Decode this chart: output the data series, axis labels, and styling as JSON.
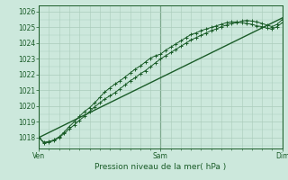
{
  "xlabel": "Pression niveau de la mer( hPa )",
  "background_color": "#cce8dc",
  "grid_color": "#aaccbb",
  "line_color": "#1a5c28",
  "ylim": [
    1017.3,
    1026.4
  ],
  "xlim": [
    0,
    48
  ],
  "x_ticks": [
    0,
    24,
    48
  ],
  "x_tick_labels": [
    "Ven",
    "Sam",
    "Dim"
  ],
  "y_ticks": [
    1018,
    1019,
    1020,
    1021,
    1022,
    1023,
    1024,
    1025,
    1026
  ],
  "line1_x": [
    0,
    1,
    2,
    3,
    4,
    5,
    6,
    7,
    8,
    9,
    10,
    11,
    12,
    13,
    14,
    15,
    16,
    17,
    18,
    19,
    20,
    21,
    22,
    23,
    24,
    25,
    26,
    27,
    28,
    29,
    30,
    31,
    32,
    33,
    34,
    35,
    36,
    37,
    38,
    39,
    40,
    41,
    42,
    43,
    44,
    45,
    46,
    47,
    48
  ],
  "line1_y": [
    1018.0,
    1017.65,
    1017.7,
    1017.8,
    1018.0,
    1018.25,
    1018.55,
    1018.8,
    1019.1,
    1019.35,
    1019.65,
    1019.95,
    1020.2,
    1020.45,
    1020.65,
    1020.85,
    1021.1,
    1021.35,
    1021.6,
    1021.8,
    1022.05,
    1022.25,
    1022.5,
    1022.75,
    1023.0,
    1023.2,
    1023.4,
    1023.6,
    1023.8,
    1024.0,
    1024.2,
    1024.35,
    1024.5,
    1024.65,
    1024.8,
    1024.9,
    1025.05,
    1025.15,
    1025.25,
    1025.3,
    1025.4,
    1025.45,
    1025.4,
    1025.35,
    1025.25,
    1025.15,
    1025.05,
    1025.2,
    1025.5
  ],
  "line2_x": [
    0,
    1,
    2,
    3,
    4,
    5,
    6,
    7,
    8,
    9,
    10,
    11,
    12,
    13,
    14,
    15,
    16,
    17,
    18,
    19,
    20,
    21,
    22,
    23,
    24,
    25,
    26,
    27,
    28,
    29,
    30,
    31,
    32,
    33,
    34,
    35,
    36,
    37,
    38,
    39,
    40,
    41,
    42,
    43,
    44,
    45,
    46,
    47,
    48
  ],
  "line2_y": [
    1018.0,
    1017.7,
    1017.75,
    1017.85,
    1018.05,
    1018.35,
    1018.7,
    1019.0,
    1019.35,
    1019.65,
    1019.9,
    1020.2,
    1020.55,
    1020.9,
    1021.15,
    1021.4,
    1021.6,
    1021.85,
    1022.1,
    1022.35,
    1022.55,
    1022.8,
    1023.05,
    1023.2,
    1023.3,
    1023.55,
    1023.75,
    1023.95,
    1024.15,
    1024.35,
    1024.55,
    1024.65,
    1024.8,
    1024.9,
    1025.0,
    1025.1,
    1025.2,
    1025.3,
    1025.35,
    1025.35,
    1025.3,
    1025.25,
    1025.2,
    1025.1,
    1025.05,
    1024.95,
    1024.9,
    1025.05,
    1025.3
  ],
  "line3_x": [
    0,
    48
  ],
  "line3_y": [
    1018.0,
    1025.6
  ],
  "figsize": [
    3.2,
    2.0
  ],
  "dpi": 100
}
